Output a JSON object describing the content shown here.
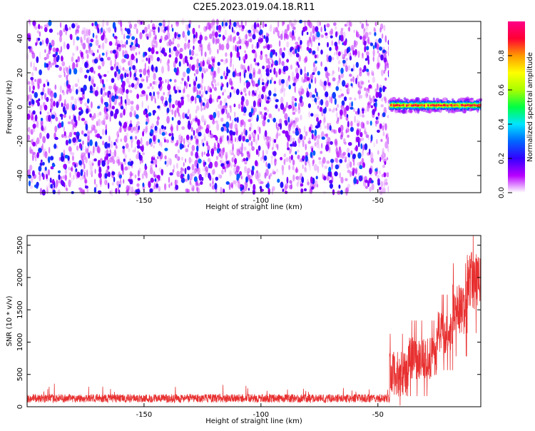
{
  "title": "C2E5.2023.019.04.18.R11",
  "chart_data": [
    {
      "type": "heatmap",
      "xlabel": "Height of straight line (km)",
      "ylabel": "Frequency (Hz)",
      "xlim": [
        -200,
        -6
      ],
      "ylim": [
        -50,
        50
      ],
      "xticks": [
        -150,
        -100,
        -50
      ],
      "yticks": [
        -40,
        -20,
        0,
        20,
        40
      ],
      "signal_band": {
        "x_start": -45,
        "x_end": -6,
        "frequency": 1
      },
      "noise_region": {
        "x_start": -200,
        "x_end": -45
      },
      "colorbar": {
        "label": "Normalized spectral amplitude",
        "range": [
          0,
          1
        ],
        "ticks": [
          0.0,
          0.2,
          0.4,
          0.6,
          0.8
        ],
        "colors": [
          "#ffffff",
          "#b800ff",
          "#3300ff",
          "#0066ff",
          "#00e5ff",
          "#00ff44",
          "#a8ff00",
          "#ffff00",
          "#ff9900",
          "#ff0033",
          "#ff0088"
        ]
      }
    },
    {
      "type": "line",
      "xlabel": "Height of straight line (km)",
      "ylabel": "SNR (10 * v/v)",
      "xlim": [
        -200,
        -6
      ],
      "ylim": [
        0,
        2650
      ],
      "xticks": [
        -150,
        -100,
        -50
      ],
      "yticks": [
        0,
        500,
        1000,
        1500,
        2000,
        2500
      ],
      "color": "#e83030",
      "segments": [
        {
          "x": [
            -200,
            -45
          ],
          "mean": 130,
          "spread": 130
        },
        {
          "x": [
            -45,
            -37
          ],
          "mean": 500,
          "spread": 700
        },
        {
          "x": [
            -37,
            -25
          ],
          "mean": 750,
          "spread": 650
        },
        {
          "x": [
            -25,
            -18
          ],
          "mean": 1150,
          "spread": 650
        },
        {
          "x": [
            -18,
            -12
          ],
          "mean": 1500,
          "spread": 800
        },
        {
          "x": [
            -12,
            -6
          ],
          "mean": 1950,
          "spread": 900
        }
      ]
    }
  ]
}
